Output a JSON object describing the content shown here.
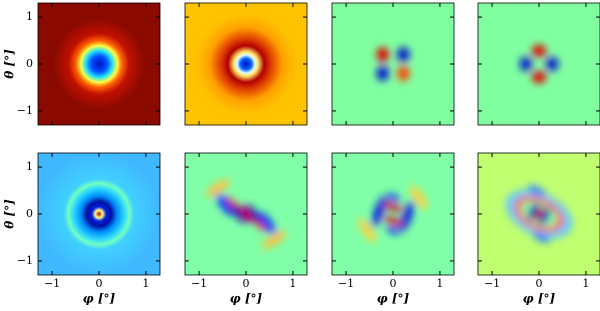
{
  "chart_data": [
    {
      "type": "heatmap",
      "xlim": [
        -1.3,
        1.3
      ],
      "ylim": [
        -1.3,
        1.3
      ],
      "ylabel": "θ [°]",
      "yticks": [
        {
          "value": -1,
          "label": "−1"
        },
        0,
        1
      ]
    },
    {
      "type": "heatmap",
      "xlim": [
        -1.3,
        1.3
      ],
      "ylim": [
        -1.3,
        1.3
      ]
    },
    {
      "type": "heatmap",
      "xlim": [
        -1.3,
        1.3
      ],
      "ylim": [
        -1.3,
        1.3
      ]
    },
    {
      "type": "heatmap",
      "xlim": [
        -1.3,
        1.3
      ],
      "ylim": [
        -1.3,
        1.3
      ]
    },
    {
      "type": "heatmap",
      "xlim": [
        -1.3,
        1.3
      ],
      "ylim": [
        -1.3,
        1.3
      ],
      "ylabel": "θ [°]",
      "xlabel": "φ [°]",
      "xticks": [
        {
          "value": -1,
          "label": "−1"
        },
        0,
        1
      ],
      "yticks": [
        {
          "value": -1,
          "label": "−1"
        },
        0,
        1
      ]
    },
    {
      "type": "heatmap",
      "xlim": [
        -1.3,
        1.3
      ],
      "ylim": [
        -1.3,
        1.3
      ],
      "xlabel": "φ [°]",
      "xticks": [
        {
          "value": -1,
          "label": "−1"
        },
        0,
        1
      ]
    },
    {
      "type": "heatmap",
      "xlim": [
        -1.3,
        1.3
      ],
      "ylim": [
        -1.3,
        1.3
      ],
      "xlabel": "φ [°]",
      "xticks": [
        {
          "value": -1,
          "label": "−1"
        },
        0,
        1
      ]
    },
    {
      "type": "heatmap",
      "xlim": [
        -1.3,
        1.3
      ],
      "ylim": [
        -1.3,
        1.3
      ],
      "xlabel": "φ [°]",
      "xticks": [
        {
          "value": -1,
          "label": "−1"
        },
        0,
        1
      ]
    }
  ]
}
